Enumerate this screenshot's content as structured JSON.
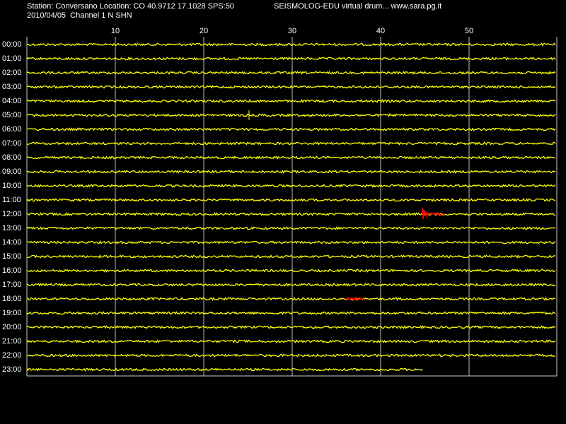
{
  "header": {
    "station": "Station: Conversano Location: CO 40.9712 17.1028 SPS:50",
    "program": "SEISMOLOG-EDU virtual drum... www.sara.pg.it",
    "date_channel": "2010/04/05  Channel 1 N SHN"
  },
  "minute_ticks": [
    "10",
    "20",
    "30",
    "40",
    "50"
  ],
  "rows": [
    "00:00",
    "01:00",
    "02:00",
    "03:00",
    "04:00",
    "05:00",
    "06:00",
    "07:00",
    "08:00",
    "09:00",
    "10:00",
    "11:00",
    "12:00",
    "13:00",
    "14:00",
    "15:00",
    "16:00",
    "17:00",
    "18:00",
    "19:00",
    "20:00",
    "21:00",
    "22:00",
    "23:00"
  ]
}
